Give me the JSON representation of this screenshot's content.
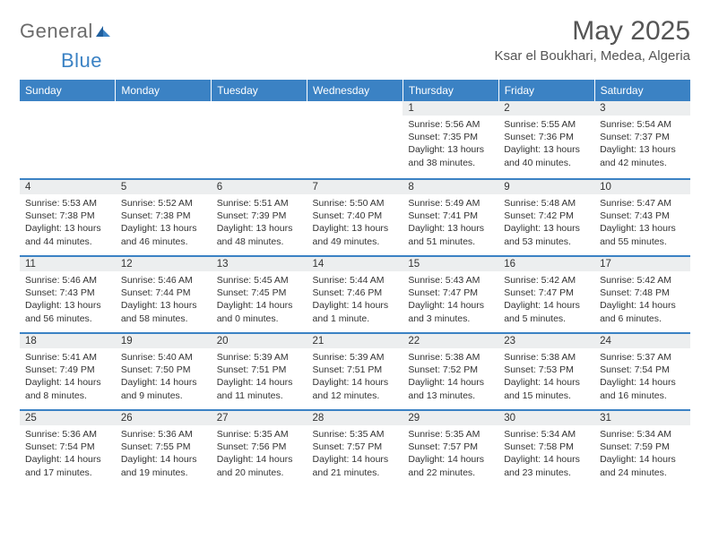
{
  "logo": {
    "general": "General",
    "blue": "Blue"
  },
  "header": {
    "month_title": "May 2025",
    "location": "Ksar el Boukhari, Medea, Algeria"
  },
  "colors": {
    "header_bg": "#3b82c4",
    "header_text": "#ffffff",
    "daynum_bg": "#eceeef",
    "row_border": "#3b82c4",
    "text": "#333333",
    "title": "#555555"
  },
  "weekdays": [
    "Sunday",
    "Monday",
    "Tuesday",
    "Wednesday",
    "Thursday",
    "Friday",
    "Saturday"
  ],
  "weeks": [
    [
      null,
      null,
      null,
      null,
      {
        "n": "1",
        "sunrise": "5:56 AM",
        "sunset": "7:35 PM",
        "dl": "13 hours and 38 minutes."
      },
      {
        "n": "2",
        "sunrise": "5:55 AM",
        "sunset": "7:36 PM",
        "dl": "13 hours and 40 minutes."
      },
      {
        "n": "3",
        "sunrise": "5:54 AM",
        "sunset": "7:37 PM",
        "dl": "13 hours and 42 minutes."
      }
    ],
    [
      {
        "n": "4",
        "sunrise": "5:53 AM",
        "sunset": "7:38 PM",
        "dl": "13 hours and 44 minutes."
      },
      {
        "n": "5",
        "sunrise": "5:52 AM",
        "sunset": "7:38 PM",
        "dl": "13 hours and 46 minutes."
      },
      {
        "n": "6",
        "sunrise": "5:51 AM",
        "sunset": "7:39 PM",
        "dl": "13 hours and 48 minutes."
      },
      {
        "n": "7",
        "sunrise": "5:50 AM",
        "sunset": "7:40 PM",
        "dl": "13 hours and 49 minutes."
      },
      {
        "n": "8",
        "sunrise": "5:49 AM",
        "sunset": "7:41 PM",
        "dl": "13 hours and 51 minutes."
      },
      {
        "n": "9",
        "sunrise": "5:48 AM",
        "sunset": "7:42 PM",
        "dl": "13 hours and 53 minutes."
      },
      {
        "n": "10",
        "sunrise": "5:47 AM",
        "sunset": "7:43 PM",
        "dl": "13 hours and 55 minutes."
      }
    ],
    [
      {
        "n": "11",
        "sunrise": "5:46 AM",
        "sunset": "7:43 PM",
        "dl": "13 hours and 56 minutes."
      },
      {
        "n": "12",
        "sunrise": "5:46 AM",
        "sunset": "7:44 PM",
        "dl": "13 hours and 58 minutes."
      },
      {
        "n": "13",
        "sunrise": "5:45 AM",
        "sunset": "7:45 PM",
        "dl": "14 hours and 0 minutes."
      },
      {
        "n": "14",
        "sunrise": "5:44 AM",
        "sunset": "7:46 PM",
        "dl": "14 hours and 1 minute."
      },
      {
        "n": "15",
        "sunrise": "5:43 AM",
        "sunset": "7:47 PM",
        "dl": "14 hours and 3 minutes."
      },
      {
        "n": "16",
        "sunrise": "5:42 AM",
        "sunset": "7:47 PM",
        "dl": "14 hours and 5 minutes."
      },
      {
        "n": "17",
        "sunrise": "5:42 AM",
        "sunset": "7:48 PM",
        "dl": "14 hours and 6 minutes."
      }
    ],
    [
      {
        "n": "18",
        "sunrise": "5:41 AM",
        "sunset": "7:49 PM",
        "dl": "14 hours and 8 minutes."
      },
      {
        "n": "19",
        "sunrise": "5:40 AM",
        "sunset": "7:50 PM",
        "dl": "14 hours and 9 minutes."
      },
      {
        "n": "20",
        "sunrise": "5:39 AM",
        "sunset": "7:51 PM",
        "dl": "14 hours and 11 minutes."
      },
      {
        "n": "21",
        "sunrise": "5:39 AM",
        "sunset": "7:51 PM",
        "dl": "14 hours and 12 minutes."
      },
      {
        "n": "22",
        "sunrise": "5:38 AM",
        "sunset": "7:52 PM",
        "dl": "14 hours and 13 minutes."
      },
      {
        "n": "23",
        "sunrise": "5:38 AM",
        "sunset": "7:53 PM",
        "dl": "14 hours and 15 minutes."
      },
      {
        "n": "24",
        "sunrise": "5:37 AM",
        "sunset": "7:54 PM",
        "dl": "14 hours and 16 minutes."
      }
    ],
    [
      {
        "n": "25",
        "sunrise": "5:36 AM",
        "sunset": "7:54 PM",
        "dl": "14 hours and 17 minutes."
      },
      {
        "n": "26",
        "sunrise": "5:36 AM",
        "sunset": "7:55 PM",
        "dl": "14 hours and 19 minutes."
      },
      {
        "n": "27",
        "sunrise": "5:35 AM",
        "sunset": "7:56 PM",
        "dl": "14 hours and 20 minutes."
      },
      {
        "n": "28",
        "sunrise": "5:35 AM",
        "sunset": "7:57 PM",
        "dl": "14 hours and 21 minutes."
      },
      {
        "n": "29",
        "sunrise": "5:35 AM",
        "sunset": "7:57 PM",
        "dl": "14 hours and 22 minutes."
      },
      {
        "n": "30",
        "sunrise": "5:34 AM",
        "sunset": "7:58 PM",
        "dl": "14 hours and 23 minutes."
      },
      {
        "n": "31",
        "sunrise": "5:34 AM",
        "sunset": "7:59 PM",
        "dl": "14 hours and 24 minutes."
      }
    ]
  ],
  "labels": {
    "sunrise_prefix": "Sunrise: ",
    "sunset_prefix": "Sunset: ",
    "daylight_prefix": "Daylight: "
  }
}
